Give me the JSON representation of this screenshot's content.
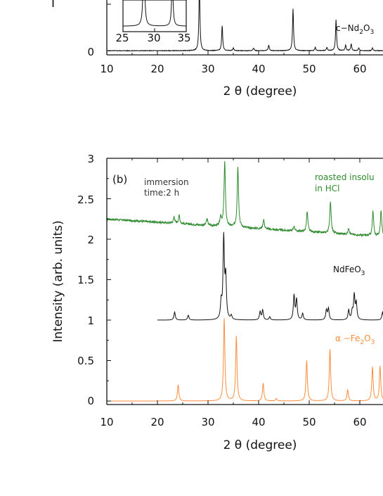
{
  "figure": {
    "panel_top": {
      "xlabel": "2 θ (degree)",
      "y_tick_labels": [
        "0"
      ],
      "x_tick_labels": [
        "10",
        "20",
        "30",
        "40",
        "50",
        "60"
      ],
      "series_label": "c−Nd2O3",
      "inset": {
        "x_tick_labels": [
          "25",
          "30",
          "35"
        ]
      }
    },
    "panel_b": {
      "tag": "(b)",
      "note_line1": "immersion",
      "note_line2": "time:2 h",
      "ylabel": "Intensity (arb. units)",
      "xlabel": "2 θ (degree)",
      "y_tick_labels": [
        "0",
        "0.5",
        "1",
        "1.5",
        "2",
        "2.5",
        "3"
      ],
      "x_tick_labels": [
        "10",
        "20",
        "30",
        "40",
        "50",
        "60"
      ],
      "label_green_1": "roasted insolu",
      "label_green_2": "in HCl",
      "label_black": "NdFeO3",
      "label_orange": "α −Fe2O3"
    }
  },
  "colors": {
    "green": "#2e8b2e",
    "black": "#111111",
    "orange": "#ff8c3a",
    "axis": "#111111"
  },
  "chart_data": [
    {
      "type": "line",
      "xlabel": "2 θ (degree)",
      "xlim": [
        10,
        65
      ],
      "ylim": [
        0,
        1
      ],
      "series": [
        {
          "name": "c−Nd2O3",
          "baseline": 0.03,
          "peaks": [
            [
              28.3,
              1.2
            ],
            [
              32.8,
              0.45
            ],
            [
              35.0,
              0.05
            ],
            [
              39.0,
              0.05
            ],
            [
              42.0,
              0.1
            ],
            [
              46.8,
              0.75
            ],
            [
              51.2,
              0.06
            ],
            [
              53.5,
              0.06
            ],
            [
              55.3,
              0.55
            ],
            [
              57.2,
              0.1
            ],
            [
              58.3,
              0.12
            ],
            [
              59.8,
              0.05
            ],
            [
              62.5,
              0.05
            ]
          ]
        }
      ],
      "inset": {
        "xlim": [
          25,
          35
        ],
        "peaks": [
          [
            28.3,
            1.0
          ],
          [
            32.8,
            0.55
          ]
        ]
      }
    },
    {
      "type": "line",
      "xlabel": "2 θ (degree)",
      "ylabel": "Intensity (arb. units)",
      "xlim": [
        10,
        65
      ],
      "ylim": [
        0,
        3
      ],
      "series": [
        {
          "name": "roasted insolu in HCl",
          "offset": 2.2,
          "baseline_slope": -0.004,
          "noise": 0.025,
          "peaks": [
            [
              23.3,
              0.08
            ],
            [
              24.3,
              0.1
            ],
            [
              29.8,
              0.08
            ],
            [
              32.5,
              0.12
            ],
            [
              33.3,
              0.8
            ],
            [
              35.9,
              0.75
            ],
            [
              41.0,
              0.12
            ],
            [
              47.0,
              0.06
            ],
            [
              49.6,
              0.25
            ],
            [
              54.2,
              0.4
            ],
            [
              57.8,
              0.08
            ],
            [
              62.6,
              0.3
            ],
            [
              64.2,
              0.32
            ]
          ]
        },
        {
          "name": "NdFeO3",
          "offset": 1.0,
          "peaks": [
            [
              23.4,
              0.1
            ],
            [
              26.1,
              0.06
            ],
            [
              32.6,
              0.2
            ],
            [
              33.1,
              1.0
            ],
            [
              33.5,
              0.5
            ],
            [
              34.6,
              0.05
            ],
            [
              40.3,
              0.1
            ],
            [
              40.8,
              0.12
            ],
            [
              42.2,
              0.04
            ],
            [
              47.0,
              0.3
            ],
            [
              47.5,
              0.25
            ],
            [
              48.7,
              0.08
            ],
            [
              53.4,
              0.12
            ],
            [
              53.8,
              0.14
            ],
            [
              57.8,
              0.12
            ],
            [
              58.5,
              0.1
            ],
            [
              58.9,
              0.3
            ],
            [
              59.3,
              0.2
            ],
            [
              64.5,
              0.1
            ]
          ]
        },
        {
          "name": "α −Fe2O3",
          "offset": 0.0,
          "peaks": [
            [
              24.1,
              0.2
            ],
            [
              33.2,
              1.02
            ],
            [
              35.6,
              0.8
            ],
            [
              40.9,
              0.22
            ],
            [
              43.5,
              0.03
            ],
            [
              49.5,
              0.5
            ],
            [
              54.1,
              0.64
            ],
            [
              57.6,
              0.14
            ],
            [
              62.5,
              0.42
            ],
            [
              64.0,
              0.43
            ]
          ]
        }
      ]
    }
  ]
}
